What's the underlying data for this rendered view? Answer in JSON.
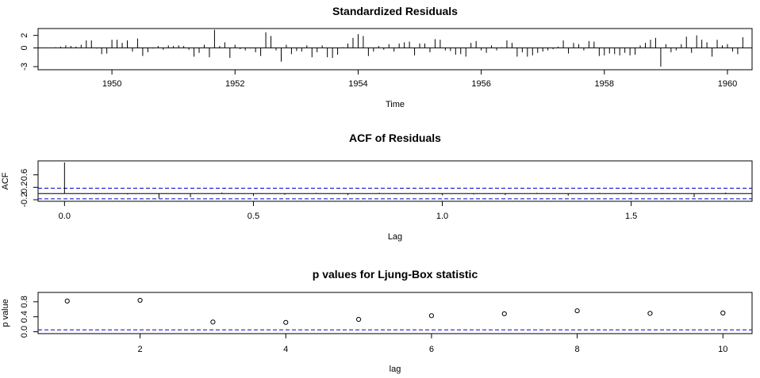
{
  "chart_data": [
    {
      "type": "line",
      "title": "Standardized Residuals",
      "xlabel": "Time",
      "ylabel": "",
      "xlim": [
        1948.8,
        1960.4
      ],
      "ylim": [
        -3.5,
        3.1
      ],
      "xticks": [
        1950,
        1952,
        1954,
        1956,
        1958,
        1960
      ],
      "yticks": [
        -3,
        0,
        2
      ],
      "hline": 0,
      "start": 1949.0,
      "frequency": 12,
      "values": [
        0.0,
        0.1,
        0.2,
        0.4,
        0.3,
        0.2,
        0.5,
        1.2,
        1.2,
        -0.1,
        -1.0,
        -0.9,
        1.3,
        1.3,
        0.8,
        1.2,
        -0.6,
        1.5,
        -1.3,
        -0.7,
        -0.1,
        0.3,
        -0.3,
        0.4,
        0.3,
        0.4,
        0.3,
        -0.3,
        -1.4,
        -0.8,
        0.5,
        -1.5,
        2.9,
        0.3,
        0.9,
        -1.6,
        0.5,
        -0.2,
        -0.4,
        -0.1,
        -0.7,
        -1.3,
        2.5,
        1.9,
        -0.4,
        -2.2,
        0.5,
        -1.0,
        -0.5,
        -0.6,
        0.4,
        -1.5,
        -0.7,
        0.4,
        -1.5,
        -1.6,
        -1.1,
        0.1,
        0.7,
        1.6,
        2.2,
        1.9,
        -1.3,
        -0.6,
        0.3,
        -0.3,
        0.6,
        -0.6,
        0.7,
        0.9,
        1.0,
        -1.2,
        0.7,
        0.7,
        -0.7,
        1.4,
        1.3,
        -0.4,
        -0.5,
        -1.1,
        -1.0,
        -1.4,
        0.8,
        1.1,
        -0.4,
        -0.8,
        0.4,
        -0.4,
        0.1,
        1.2,
        0.8,
        -1.4,
        -0.7,
        -1.4,
        -1.2,
        -0.8,
        -0.6,
        -0.4,
        -0.2,
        0.2,
        1.2,
        -0.9,
        0.8,
        0.6,
        -0.4,
        1.1,
        1.0,
        -1.3,
        -1.2,
        -0.9,
        -1.0,
        -1.2,
        -0.8,
        -1.2,
        -1.1,
        0.4,
        0.8,
        1.3,
        1.6,
        -3.0,
        0.6,
        -0.7,
        -0.4,
        0.6,
        1.8,
        -0.8,
        2.0,
        1.3,
        0.9,
        -1.4,
        1.3,
        0.4,
        0.6,
        -0.6,
        -1.0,
        1.7
      ]
    },
    {
      "type": "bar",
      "title": "ACF of Residuals",
      "xlabel": "Lag",
      "ylabel": "ACF",
      "xlim": [
        -0.07,
        1.82
      ],
      "ylim": [
        -0.25,
        1.05
      ],
      "xticks": [
        0.0,
        0.5,
        1.0,
        1.5
      ],
      "xtick_labels": [
        "0.0",
        "0.5",
        "1.0",
        "1.5"
      ],
      "yticks": [
        -0.2,
        0.2,
        0.6
      ],
      "ytick_labels": [
        "-0.2",
        "0.2",
        "0.6"
      ],
      "hline": 0,
      "confidence_bound": 0.17,
      "lags": [
        0.0,
        0.0833,
        0.1667,
        0.25,
        0.3333,
        0.4167,
        0.5,
        0.5833,
        0.6667,
        0.75,
        0.8333,
        0.9167,
        1.0,
        1.0833,
        1.1667,
        1.25,
        1.3333,
        1.4167,
        1.5,
        1.5833,
        1.6667,
        1.75
      ],
      "values": [
        1.0,
        -0.02,
        -0.03,
        -0.15,
        -0.12,
        0.03,
        -0.08,
        -0.04,
        0.02,
        -0.05,
        0.02,
        0.01,
        -0.06,
        -0.03,
        -0.05,
        0.02,
        -0.07,
        0.02,
        0.03,
        -0.02,
        -0.12,
        0.03
      ]
    },
    {
      "type": "scatter",
      "title": "p values for Ljung-Box statistic",
      "xlabel": "lag",
      "ylabel": "p value",
      "xlim": [
        0.6,
        10.4
      ],
      "ylim": [
        -0.05,
        1.05
      ],
      "xticks": [
        2,
        4,
        6,
        8,
        10
      ],
      "yticks": [
        0.0,
        0.4,
        0.8
      ],
      "ytick_labels": [
        "0.0",
        "0.4",
        "0.8"
      ],
      "reference_line": 0.05,
      "x": [
        1,
        2,
        3,
        4,
        5,
        6,
        7,
        8,
        9,
        10
      ],
      "y": [
        0.82,
        0.84,
        0.26,
        0.25,
        0.33,
        0.43,
        0.48,
        0.56,
        0.49,
        0.5
      ]
    }
  ]
}
